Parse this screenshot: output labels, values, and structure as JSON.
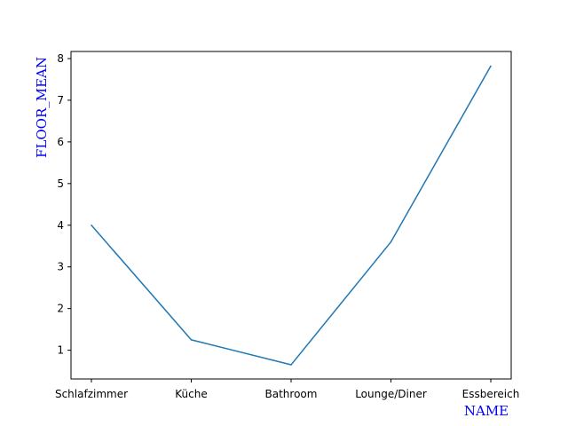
{
  "chart_data": {
    "type": "line",
    "categories": [
      "Schlafzimmer",
      "Küche",
      "Bathroom",
      "Lounge/Diner",
      "Essbereich"
    ],
    "series": [
      {
        "values": [
          4.0,
          1.25,
          0.65,
          3.6,
          7.82
        ]
      }
    ],
    "title": "",
    "xlabel": "NAME",
    "ylabel": "FLOOR_MEAN",
    "ylim": [
      0.31,
      8.17
    ],
    "yticks": [
      "1",
      "2",
      "3",
      "4",
      "5",
      "6",
      "7",
      "8"
    ],
    "grid": false,
    "colors": {
      "line": "#1f77b4",
      "axis_label": "#0000ff"
    }
  }
}
